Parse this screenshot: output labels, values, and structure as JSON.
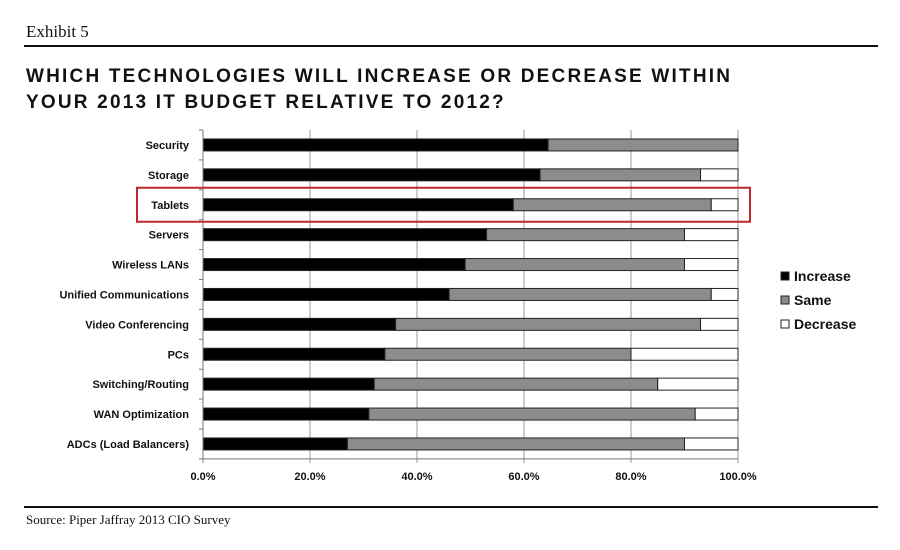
{
  "header": {
    "exhibit": "Exhibit 5",
    "title_line1": "WHICH TECHNOLOGIES WILL INCREASE OR DECREASE WITHIN",
    "title_line2": "YOUR 2013 IT BUDGET RELATIVE TO 2012?"
  },
  "footer": {
    "source": "Source: Piper Jaffray 2013 CIO Survey"
  },
  "highlight": {
    "category": "Tablets",
    "color": "#c0272d"
  },
  "colors": {
    "Increase": "#000000",
    "Same": "#8c8c8c",
    "Decrease": "#ffffff"
  },
  "chart_data": {
    "type": "bar",
    "orientation": "horizontal",
    "stacked": true,
    "title": "WHICH TECHNOLOGIES WILL INCREASE OR DECREASE WITHIN YOUR 2013 IT BUDGET RELATIVE TO 2012?",
    "xlabel": "",
    "ylabel": "",
    "xlim": [
      0,
      100
    ],
    "x_ticks": [
      "0.0%",
      "20.0%",
      "40.0%",
      "60.0%",
      "80.0%",
      "100.0%"
    ],
    "grid": "vertical",
    "legend_position": "right",
    "categories": [
      "Security",
      "Storage",
      "Tablets",
      "Servers",
      "Wireless LANs",
      "Unified Communications",
      "Video Conferencing",
      "PCs",
      "Switching/Routing",
      "WAN Optimization",
      "ADCs (Load Balancers)"
    ],
    "series": [
      {
        "name": "Increase",
        "values": [
          64.5,
          63,
          58,
          53,
          49,
          46,
          36,
          34,
          32,
          31,
          27
        ]
      },
      {
        "name": "Same",
        "values": [
          35.5,
          30,
          37,
          37,
          41,
          49,
          57,
          46,
          53,
          61,
          63
        ]
      },
      {
        "name": "Decrease",
        "values": [
          0,
          7,
          5,
          10,
          10,
          5,
          7,
          20,
          15,
          8,
          10
        ]
      }
    ]
  }
}
